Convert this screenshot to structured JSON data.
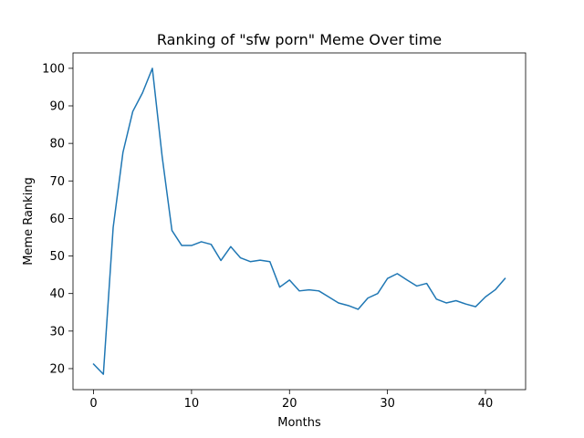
{
  "chart_data": {
    "type": "line",
    "title": "Ranking of \"sfw porn\" Meme Over time",
    "xlabel": "Months",
    "ylabel": "Meme Ranking",
    "xlim": [
      -2.1,
      44.1
    ],
    "ylim": [
      14.4,
      104.1
    ],
    "xticks": [
      0,
      10,
      20,
      30,
      40
    ],
    "yticks": [
      20,
      30,
      40,
      50,
      60,
      70,
      80,
      90,
      100
    ],
    "grid": false,
    "line_color": "#1f77b4",
    "series": [
      {
        "x": [
          0,
          1,
          2,
          3,
          4,
          5,
          6,
          7,
          8,
          9,
          10,
          11,
          12,
          13,
          14,
          15,
          16,
          17,
          18,
          19,
          20,
          21,
          22,
          23,
          24,
          25,
          26,
          27,
          28,
          29,
          30,
          31,
          32,
          33,
          34,
          35,
          36,
          37,
          38,
          39,
          40,
          41,
          42
        ],
        "values": [
          21.2,
          18.5,
          57.6,
          77.6,
          88.5,
          93.5,
          100,
          76.5,
          56.8,
          52.8,
          52.8,
          53.8,
          53.1,
          48.8,
          52.5,
          49.5,
          48.5,
          48.9,
          48.5,
          41.7,
          43.6,
          40.7,
          41.0,
          40.7,
          39.1,
          37.5,
          36.8,
          35.8,
          38.8,
          40.0,
          44.0,
          45.3,
          43.6,
          42.0,
          42.7,
          38.5,
          37.5,
          38.1,
          37.2,
          36.5,
          39.1,
          41.0,
          44.0
        ]
      }
    ]
  }
}
